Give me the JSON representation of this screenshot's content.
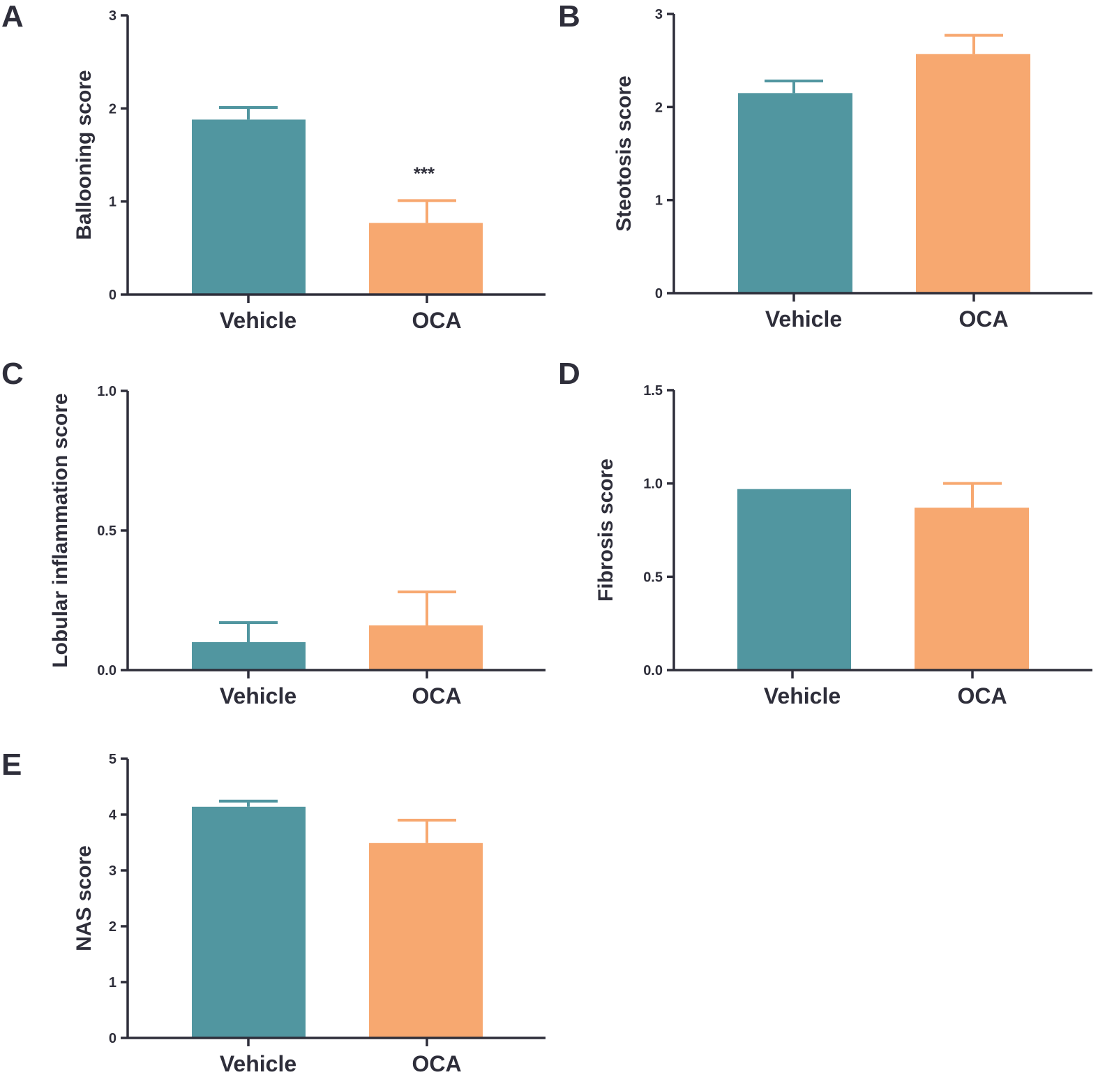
{
  "colors": {
    "Vehicle": "#5196a0",
    "OCA": "#f7a870",
    "axis": "#2e2e3a"
  },
  "chart_data": [
    {
      "panel": "A",
      "type": "bar",
      "ylabel": "Ballooning score",
      "ylim": [
        0,
        3
      ],
      "yticks": [
        0,
        1,
        2,
        3
      ],
      "ytick_labels": [
        "0",
        "1",
        "2",
        "3"
      ],
      "categories": [
        "Vehicle",
        "OCA"
      ],
      "values": [
        1.88,
        0.77
      ],
      "errors": [
        0.13,
        0.24
      ],
      "annotations": [
        {
          "category": "OCA",
          "text": "***"
        }
      ]
    },
    {
      "panel": "B",
      "type": "bar",
      "ylabel": "Steotosis score",
      "ylim": [
        0,
        3
      ],
      "yticks": [
        0,
        1,
        2,
        3
      ],
      "ytick_labels": [
        "0",
        "1",
        "2",
        "3"
      ],
      "categories": [
        "Vehicle",
        "OCA"
      ],
      "values": [
        2.15,
        2.57
      ],
      "errors": [
        0.13,
        0.2
      ]
    },
    {
      "panel": "C",
      "type": "bar",
      "ylabel": "Lobular inflammation score",
      "ylim": [
        0,
        1.0
      ],
      "yticks": [
        0,
        0.5,
        1.0
      ],
      "ytick_labels": [
        "0.0",
        "0.5",
        "1.0"
      ],
      "categories": [
        "Vehicle",
        "OCA"
      ],
      "values": [
        0.1,
        0.16
      ],
      "errors": [
        0.07,
        0.12
      ]
    },
    {
      "panel": "D",
      "type": "bar",
      "ylabel": "Fibrosis score",
      "ylim": [
        0,
        1.5
      ],
      "yticks": [
        0,
        0.5,
        1.0,
        1.5
      ],
      "ytick_labels": [
        "0.0",
        "0.5",
        "1.0",
        "1.5"
      ],
      "categories": [
        "Vehicle",
        "OCA"
      ],
      "values": [
        0.97,
        0.87
      ],
      "errors": [
        0,
        0.13
      ]
    },
    {
      "panel": "E",
      "type": "bar",
      "ylabel": "NAS score",
      "ylim": [
        0,
        5
      ],
      "yticks": [
        0,
        1,
        2,
        3,
        4,
        5
      ],
      "ytick_labels": [
        "0",
        "1",
        "2",
        "3",
        "4",
        "5"
      ],
      "categories": [
        "Vehicle",
        "OCA"
      ],
      "values": [
        4.14,
        3.49
      ],
      "errors": [
        0.1,
        0.41
      ]
    }
  ]
}
